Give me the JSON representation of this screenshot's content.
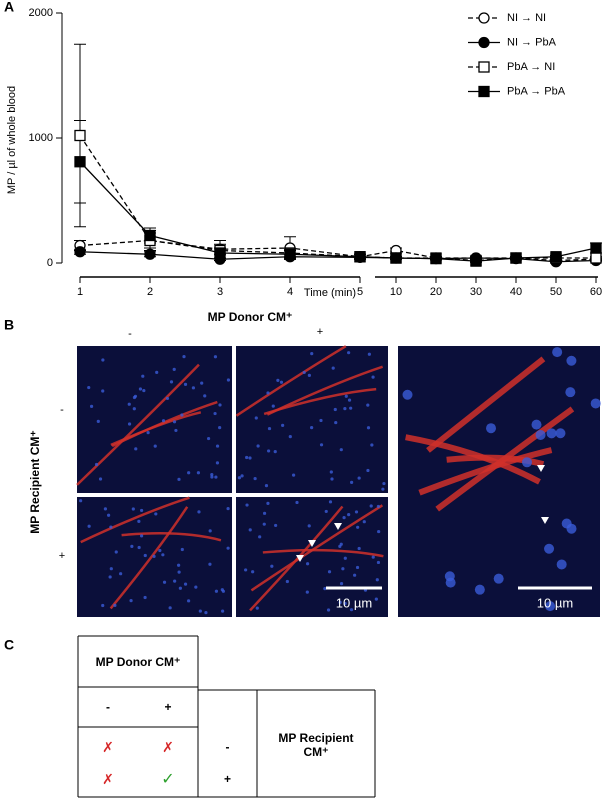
{
  "panel_labels": [
    "A",
    "B",
    "C"
  ],
  "chart_data": {
    "type": "line",
    "y_label": "MP / µl of whole blood",
    "x_label": "Time (min)",
    "categories": [
      "1",
      "2",
      "3",
      "4",
      "5",
      "10",
      "20",
      "30",
      "40",
      "50",
      "60"
    ],
    "ylim": [
      0,
      2000
    ],
    "yticks": [
      0,
      1000,
      2000
    ],
    "series": [
      {
        "name": "NI → NI",
        "color": "#000000",
        "marker": "circle",
        "filled": false,
        "dashed": true,
        "values": [
          140,
          180,
          110,
          120,
          50,
          100,
          40,
          40,
          40,
          20,
          30
        ],
        "errors": [
          40,
          60,
          40,
          90,
          20,
          20,
          10,
          10,
          10,
          10,
          10
        ]
      },
      {
        "name": "NI → PbA",
        "color": "#000000",
        "marker": "circle",
        "filled": true,
        "dashed": false,
        "values": [
          90,
          70,
          30,
          50,
          45,
          40,
          35,
          40,
          35,
          10,
          20
        ],
        "errors": [
          20,
          20,
          10,
          20,
          10,
          10,
          10,
          10,
          10,
          10,
          10
        ]
      },
      {
        "name": "PbA → NI",
        "color": "#000000",
        "marker": "square",
        "filled": false,
        "dashed": true,
        "values": [
          1020,
          180,
          100,
          80,
          50,
          40,
          40,
          20,
          40,
          40,
          40
        ],
        "errors": [
          730,
          80,
          80,
          30,
          20,
          10,
          10,
          10,
          10,
          10,
          10
        ]
      },
      {
        "name": "PbA → PbA",
        "color": "#000000",
        "marker": "square",
        "filled": true,
        "dashed": false,
        "values": [
          810,
          220,
          80,
          70,
          50,
          40,
          35,
          15,
          40,
          50,
          120
        ],
        "errors": [
          330,
          60,
          40,
          30,
          20,
          10,
          10,
          10,
          10,
          10,
          40
        ]
      }
    ]
  },
  "micrographs": {
    "donor_label": "MP Donor CM⁺",
    "donor_states": [
      "-",
      "+"
    ],
    "recipient_label": "MP Recipient CM⁺",
    "recipient_states": [
      "-",
      "+"
    ],
    "scale_bars": [
      "10 µm",
      "10 µm"
    ]
  },
  "table": {
    "header": "MP Donor CM⁺",
    "columns": [
      "-",
      "+"
    ],
    "rows": [
      [
        "✗",
        "✗",
        "-"
      ],
      [
        "✗",
        "✓",
        "+"
      ]
    ],
    "side_label": "MP Recipient CM⁺"
  }
}
